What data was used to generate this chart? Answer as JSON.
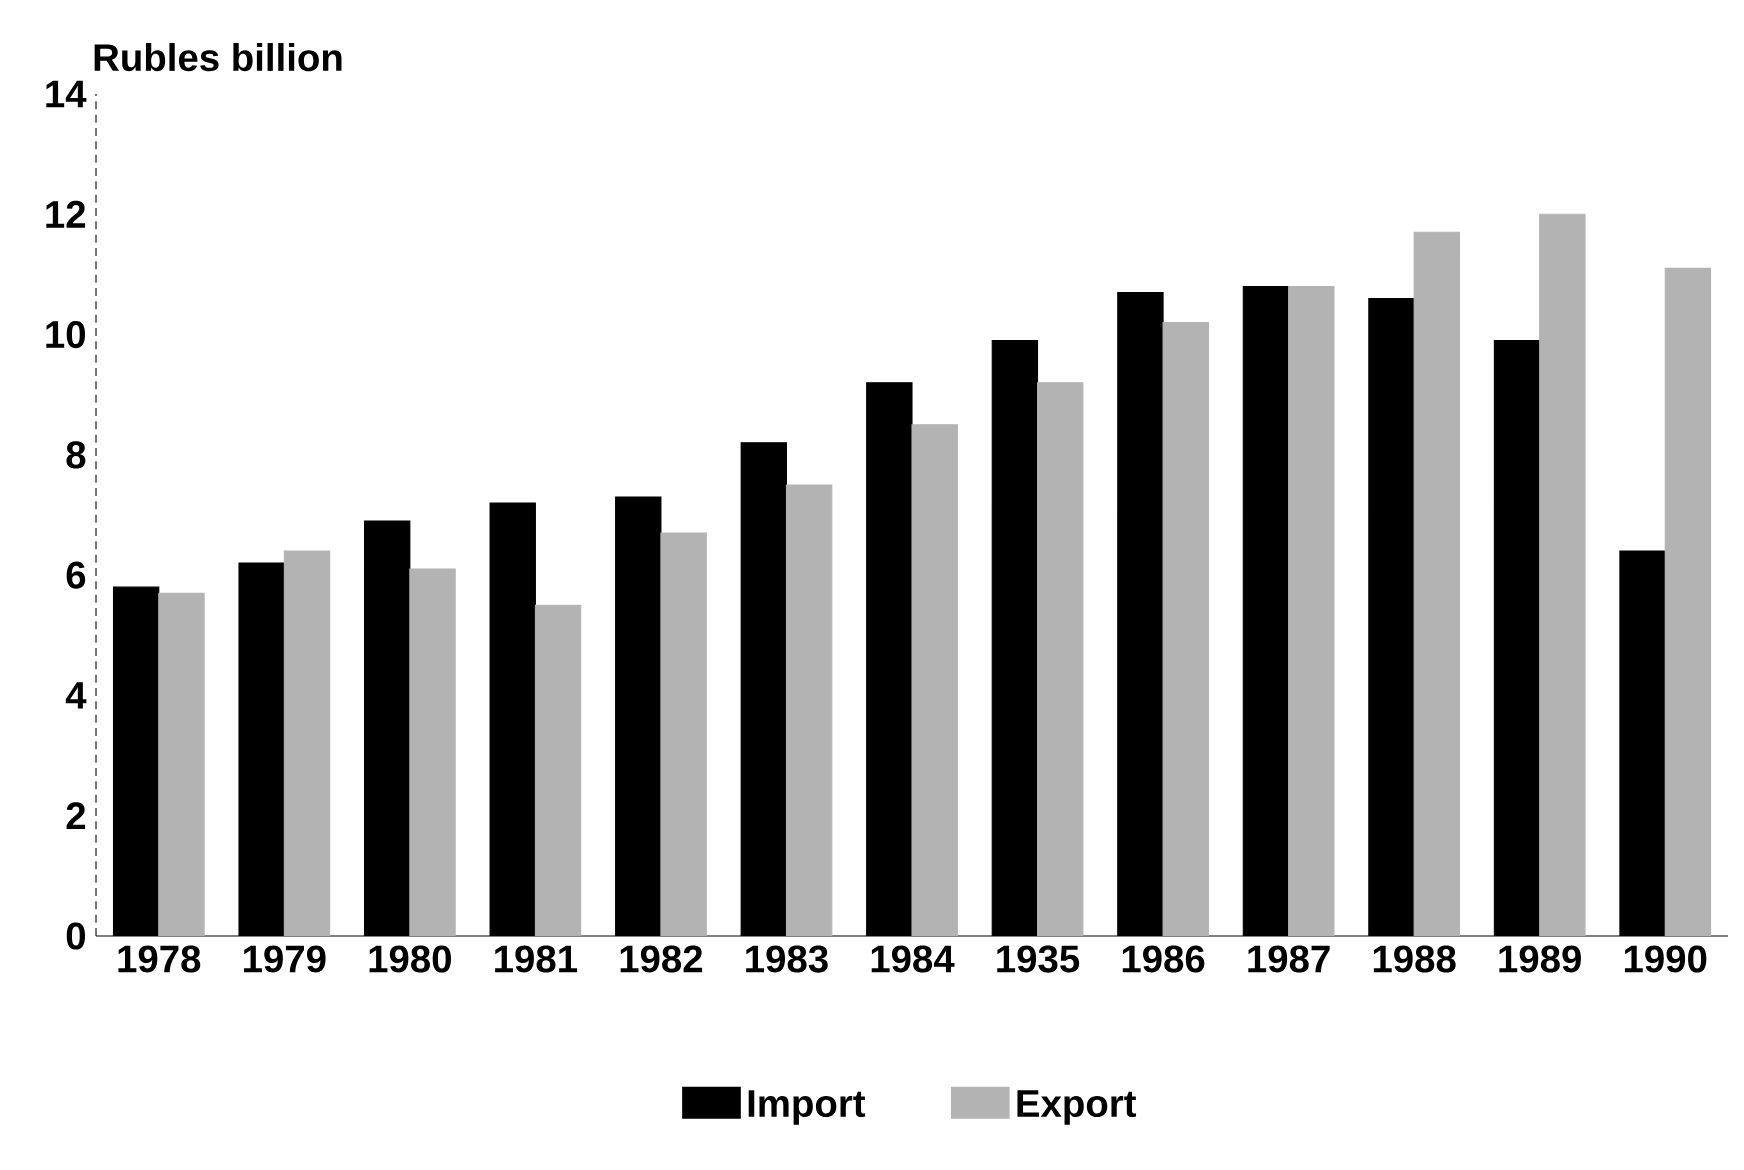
{
  "chart_data": {
    "type": "bar",
    "ylabel": "Rubles billion",
    "categories": [
      "1978",
      "1979",
      "1980",
      "1981",
      "1982",
      "1983",
      "1984",
      "1935",
      "1986",
      "1987",
      "1988",
      "1989",
      "1990"
    ],
    "series": [
      {
        "name": "Import",
        "color": "#000000",
        "values": [
          5.8,
          6.2,
          6.9,
          7.2,
          7.3,
          8.2,
          9.2,
          9.9,
          10.7,
          10.8,
          10.6,
          9.9,
          6.4
        ]
      },
      {
        "name": "Export",
        "color": "#b3b3b3",
        "values": [
          5.7,
          6.4,
          6.1,
          5.5,
          6.7,
          7.5,
          8.5,
          9.2,
          10.2,
          10.8,
          11.7,
          12.0,
          11.1
        ]
      }
    ],
    "ylim": [
      0,
      14
    ],
    "yticks": [
      0,
      2,
      4,
      6,
      8,
      10,
      12,
      14
    ],
    "legend": "bottom"
  }
}
